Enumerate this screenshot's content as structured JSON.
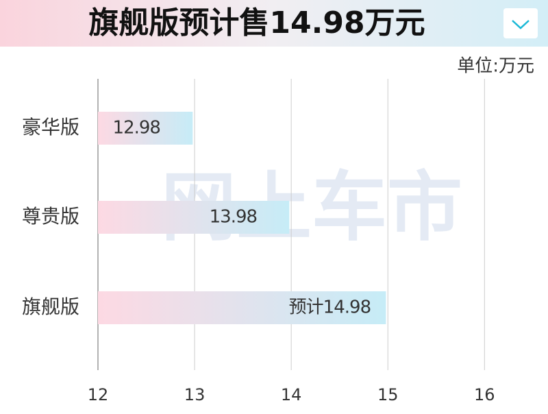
{
  "chart_data": {
    "type": "hbar",
    "title": "旗舰版预计售14.98万元",
    "unit_label": "单位:万元",
    "watermark": "网上车市",
    "categories": [
      "豪华版",
      "尊贵版",
      "旗舰版"
    ],
    "values": [
      12.98,
      13.98,
      14.98
    ],
    "value_labels": [
      "12.98",
      "13.98",
      "预计14.98"
    ],
    "gradient": [
      "#fdd9e3",
      "#c6ecf7"
    ],
    "xlim": [
      12,
      16.65
    ],
    "xticks": [
      12,
      13,
      14,
      15,
      16
    ],
    "grid": true
  }
}
